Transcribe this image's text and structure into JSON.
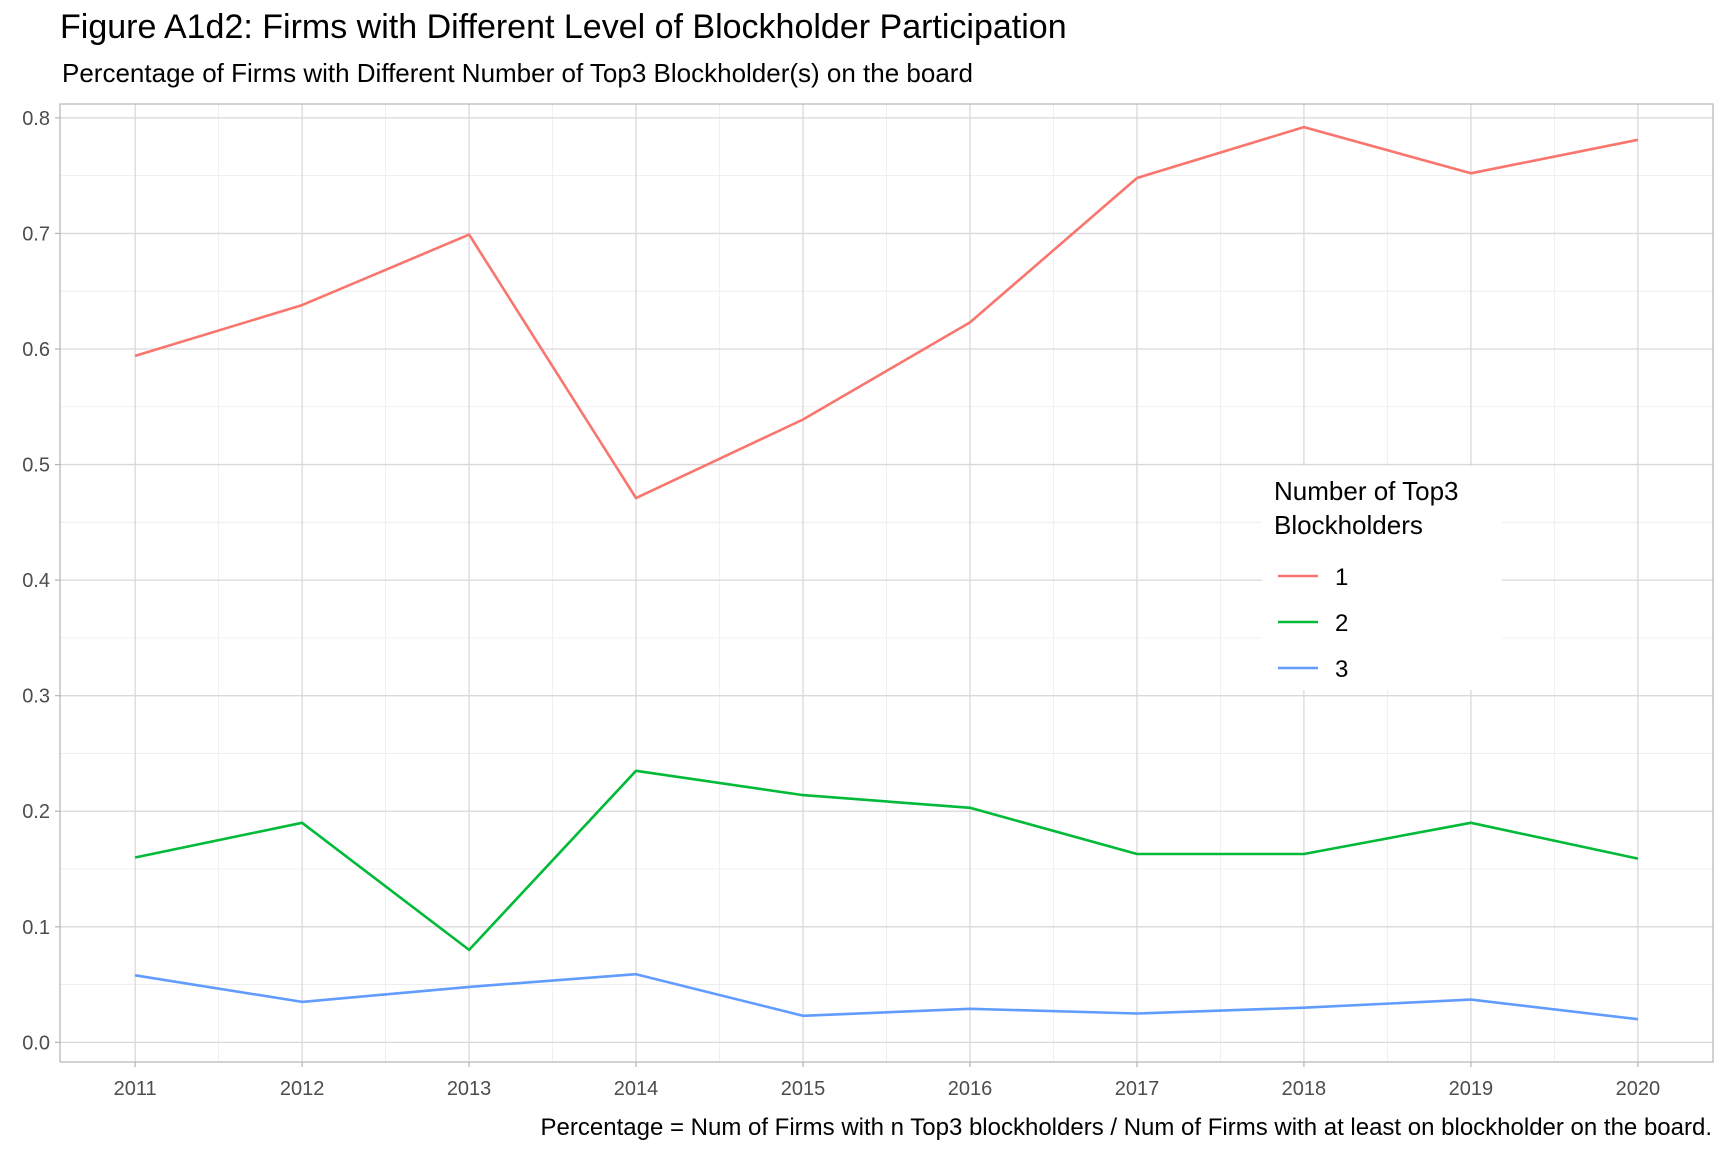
{
  "chart_data": {
    "type": "line",
    "title": "Figure A1d2: Firms with Different Level of Blockholder Participation",
    "subtitle": "Percentage of Firms with Different Number of Top3 Blockholder(s) on the board",
    "caption": "Percentage = Num of Firms with n Top3 blockholders / Num of Firms with at least on blockholder on the board.",
    "xlabel": "",
    "ylabel": "",
    "x": [
      2011,
      2012,
      2013,
      2014,
      2015,
      2016,
      2017,
      2018,
      2019,
      2020
    ],
    "x_ticks": [
      "2011",
      "2012",
      "2013",
      "2014",
      "2015",
      "2016",
      "2017",
      "2018",
      "2019",
      "2020"
    ],
    "y_ticks": [
      "0.0",
      "0.1",
      "0.2",
      "0.3",
      "0.4",
      "0.5",
      "0.6",
      "0.7",
      "0.8"
    ],
    "xlim": [
      2010.55,
      2020.45
    ],
    "ylim": [
      -0.017,
      0.812
    ],
    "grid": true,
    "legend": {
      "title_line1": "Number of Top3",
      "title_line2": "Blockholders",
      "placement": "right-inside"
    },
    "series": [
      {
        "name": "1",
        "color": "#F8766D",
        "values": [
          0.594,
          0.638,
          0.699,
          0.471,
          0.539,
          0.623,
          0.748,
          0.792,
          0.752,
          0.781
        ]
      },
      {
        "name": "2",
        "color": "#00BA38",
        "values": [
          0.16,
          0.19,
          0.08,
          0.235,
          0.214,
          0.203,
          0.163,
          0.163,
          0.19,
          0.159
        ]
      },
      {
        "name": "3",
        "color": "#619CFF",
        "values": [
          0.058,
          0.035,
          0.048,
          0.059,
          0.023,
          0.029,
          0.025,
          0.03,
          0.037,
          0.02
        ]
      }
    ]
  }
}
